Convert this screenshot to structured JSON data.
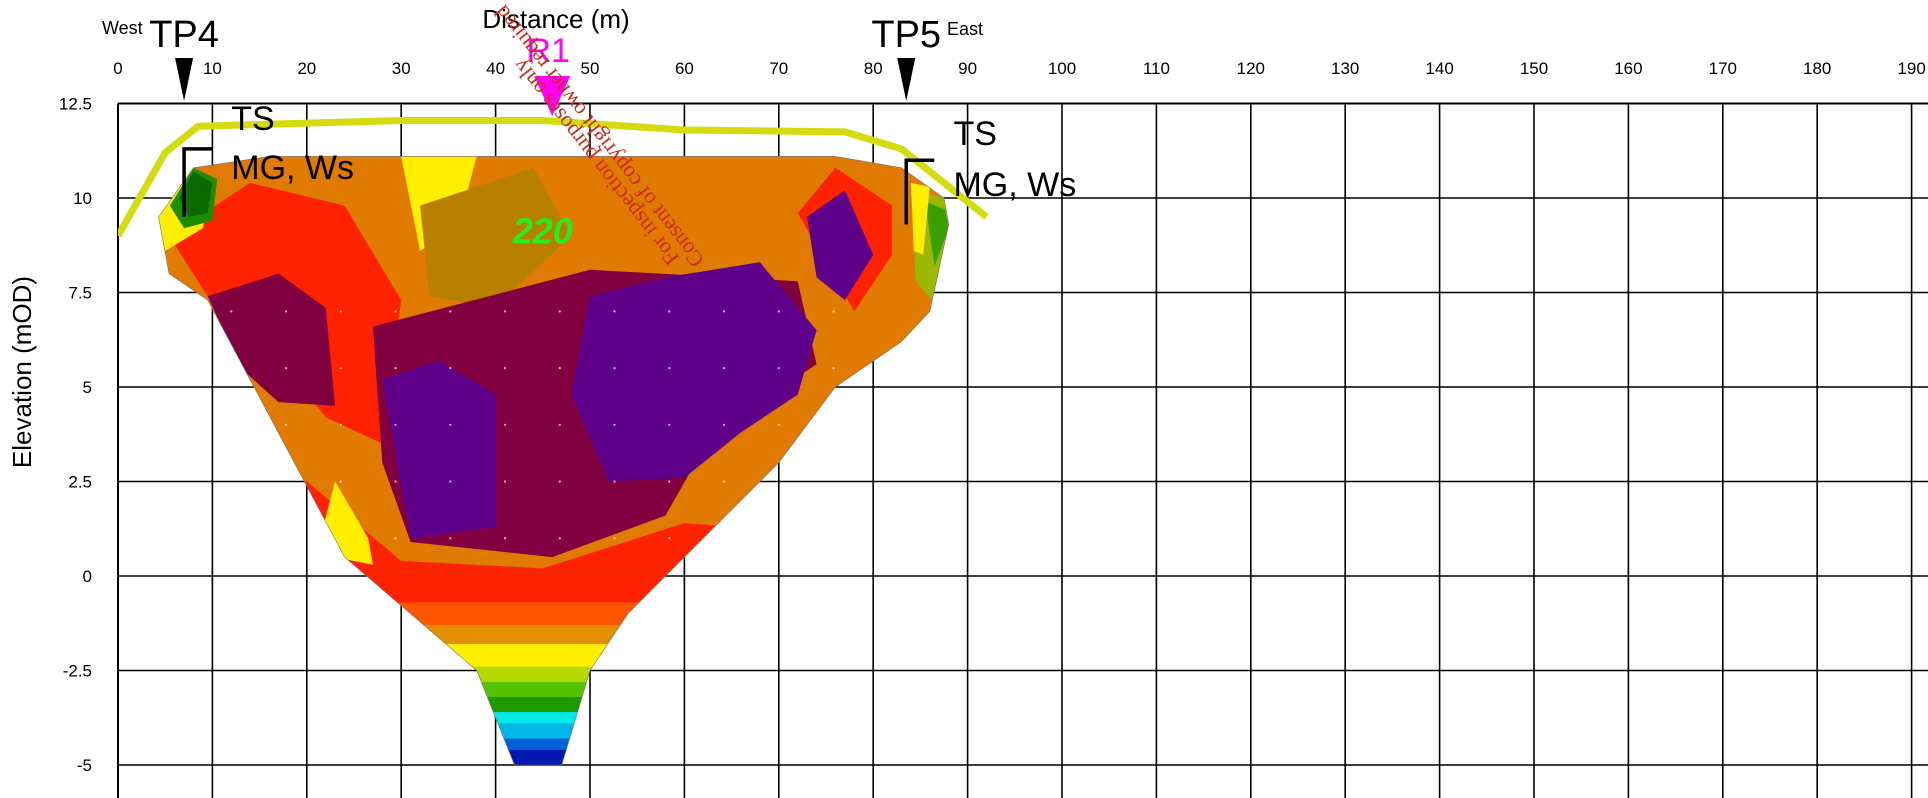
{
  "chart_data": {
    "type": "heatmap",
    "title": "",
    "xlabel": "Distance (m)",
    "ylabel": "Elevation (mOD)",
    "xlim": [
      0,
      190
    ],
    "ylim": [
      -5,
      12.5
    ],
    "x_ticks": [
      "0",
      "10",
      "20",
      "30",
      "40",
      "50",
      "60",
      "70",
      "80",
      "90",
      "100",
      "110",
      "120",
      "130",
      "140",
      "150",
      "160",
      "170",
      "180",
      "190"
    ],
    "y_ticks": [
      "12.5",
      "10",
      "7.5",
      "5",
      "2.5",
      "0",
      "-2.5",
      "-5"
    ],
    "grid": true,
    "directions": {
      "west": "West",
      "east": "East"
    },
    "trial_pits": [
      {
        "name": "TP4",
        "x": 7,
        "top": 11.3,
        "bottom": 9.5
      },
      {
        "name": "TP5",
        "x": 83.5,
        "top": 11.0,
        "bottom": 9.3
      }
    ],
    "geology_labels": [
      {
        "line1": "TS",
        "line2": "MG, Ws",
        "x": 12,
        "y1": 11.8,
        "y2": 10.5
      },
      {
        "line1": "TS",
        "line2": "MG, Ws",
        "x": 88.5,
        "y1": 11.4,
        "y2": 10.05
      }
    ],
    "markers": [
      {
        "name": "R1",
        "x": 46
      }
    ],
    "annotations": [
      {
        "text": "220",
        "x": 45,
        "y": 8.8
      }
    ],
    "ground_surface": {
      "x": [
        0,
        5,
        8.5,
        30,
        45,
        60,
        77,
        83,
        92
      ],
      "y": [
        9.0,
        11.2,
        11.9,
        12.05,
        12.05,
        11.8,
        11.75,
        11.3,
        9.5
      ]
    },
    "section_outline": {
      "x": [
        4.3,
        8,
        16,
        32,
        48,
        60,
        76,
        83,
        87.5,
        88,
        86,
        83,
        76,
        70,
        60,
        54,
        50,
        47,
        42,
        38,
        24,
        9.5,
        5.4,
        4.3
      ],
      "y": [
        9.5,
        10.8,
        11.1,
        11.1,
        11.1,
        11.1,
        11.1,
        10.8,
        10.0,
        9.3,
        7.0,
        6.2,
        5.0,
        3.0,
        0.5,
        -1.0,
        -2.5,
        -5.0,
        -5.0,
        -2.5,
        0.5,
        7.3,
        8.0,
        9.5
      ]
    },
    "zones": [
      {
        "label": "top",
        "color": "#e07a00",
        "path": [
          [
            12,
            11.1
          ],
          [
            80,
            11.1
          ],
          [
            80,
            10.4
          ],
          [
            62,
            9.2
          ],
          [
            40,
            8.8
          ],
          [
            14,
            9.2
          ]
        ]
      },
      {
        "label": "west-warm",
        "color": "#ff2200",
        "path": [
          [
            5.4,
            9.0
          ],
          [
            14,
            10.4
          ],
          [
            24,
            9.8
          ],
          [
            30,
            7.3
          ],
          [
            28,
            3.5
          ],
          [
            22,
            4.2
          ],
          [
            17,
            5.8
          ],
          [
            9.5,
            7.4
          ]
        ]
      },
      {
        "label": "left-yellow",
        "color": "#ffee00",
        "path": [
          [
            30,
            11.1
          ],
          [
            38,
            11.1
          ],
          [
            36,
            9.2
          ],
          [
            32,
            8.6
          ]
        ]
      },
      {
        "label": "center-gold",
        "color": "#b98000",
        "path": [
          [
            32,
            9.8
          ],
          [
            44,
            10.8
          ],
          [
            48,
            9.0
          ],
          [
            40,
            7.1
          ],
          [
            33,
            7.4
          ]
        ]
      },
      {
        "label": "left-pocket",
        "color": "#5e008a",
        "path": [
          [
            11,
            7.3
          ],
          [
            17,
            7.6
          ],
          [
            16,
            6.2
          ],
          [
            11.5,
            6.1
          ]
        ]
      },
      {
        "label": "left-deep",
        "color": "#800040",
        "path": [
          [
            9.5,
            7.4
          ],
          [
            17,
            8.0
          ],
          [
            22,
            7.1
          ],
          [
            23,
            4.5
          ],
          [
            17,
            4.6
          ],
          [
            13,
            5.5
          ]
        ]
      },
      {
        "label": "mid-deep",
        "color": "#800040",
        "path": [
          [
            27,
            6.6
          ],
          [
            50,
            8.1
          ],
          [
            72,
            7.8
          ],
          [
            74,
            5.6
          ],
          [
            63,
            3.8
          ],
          [
            58,
            1.6
          ],
          [
            46,
            0.5
          ],
          [
            31,
            0.9
          ],
          [
            28,
            3.0
          ]
        ]
      },
      {
        "label": "mid-purple-1",
        "color": "#5e008a",
        "path": [
          [
            28,
            5.2
          ],
          [
            34,
            5.7
          ],
          [
            40,
            4.8
          ],
          [
            40,
            1.3
          ],
          [
            31,
            1.0
          ]
        ]
      },
      {
        "label": "mid-purple-2",
        "color": "#5e008a",
        "path": [
          [
            50,
            7.4
          ],
          [
            58,
            7.9
          ],
          [
            68,
            8.3
          ],
          [
            74,
            6.5
          ],
          [
            72,
            4.8
          ],
          [
            66,
            3.8
          ],
          [
            60,
            2.6
          ],
          [
            52,
            2.5
          ],
          [
            48,
            4.8
          ]
        ]
      },
      {
        "label": "east-warm",
        "color": "#ff2200",
        "path": [
          [
            72,
            9.6
          ],
          [
            76,
            10.8
          ],
          [
            82,
            9.8
          ],
          [
            82,
            8.5
          ],
          [
            78,
            7.0
          ]
        ]
      },
      {
        "label": "east-purple",
        "color": "#5e008a",
        "path": [
          [
            73,
            9.5
          ],
          [
            77,
            10.2
          ],
          [
            80,
            8.5
          ],
          [
            77,
            7.3
          ],
          [
            74,
            7.9
          ]
        ]
      },
      {
        "label": "west-cap-yellow",
        "color": "#ffee00",
        "path": [
          [
            4.3,
            9.5
          ],
          [
            8,
            10.8
          ],
          [
            10,
            10.5
          ],
          [
            9,
            9.2
          ],
          [
            5,
            8.6
          ]
        ]
      },
      {
        "label": "west-cap-green",
        "color": "#1e8c00",
        "path": [
          [
            5.5,
            9.8
          ],
          [
            8,
            10.8
          ],
          [
            10.5,
            10.5
          ],
          [
            10,
            9.4
          ],
          [
            7,
            9.2
          ]
        ]
      },
      {
        "label": "west-cap-darkgreen",
        "color": "#0a6a00",
        "path": [
          [
            6.5,
            10.0
          ],
          [
            8,
            10.7
          ],
          [
            10,
            10.4
          ],
          [
            9.5,
            9.6
          ],
          [
            7.5,
            9.5
          ]
        ]
      },
      {
        "label": "east-cap-olive",
        "color": "#9ab800",
        "path": [
          [
            84,
            10.2
          ],
          [
            87.5,
            10.0
          ],
          [
            88,
            9.3
          ],
          [
            86.2,
            7.3
          ],
          [
            84.5,
            7.8
          ]
        ]
      },
      {
        "label": "east-cap-green",
        "color": "#3aa000",
        "path": [
          [
            85.5,
            9.9
          ],
          [
            87.6,
            9.7
          ],
          [
            88,
            9.2
          ],
          [
            86.5,
            8.2
          ]
        ]
      },
      {
        "label": "east-cap-yellow",
        "color": "#ffee00",
        "path": [
          [
            84,
            10.4
          ],
          [
            86,
            10.3
          ],
          [
            85.3,
            8.5
          ],
          [
            84.3,
            8.6
          ]
        ]
      },
      {
        "label": "west-low-yellow",
        "color": "#ffee00",
        "path": [
          [
            23,
            2.5
          ],
          [
            26.5,
            1.0
          ],
          [
            27,
            0.3
          ],
          [
            21,
            0.6
          ]
        ]
      }
    ],
    "bottom_bands": [
      {
        "level": 0.1,
        "color": "#ff2200"
      },
      {
        "level": -0.7,
        "color": "#ff5500"
      },
      {
        "level": -1.3,
        "color": "#e09000"
      },
      {
        "level": -1.8,
        "color": "#ffee00"
      },
      {
        "level": -2.4,
        "color": "#b5d800"
      },
      {
        "level": -2.8,
        "color": "#55c400"
      },
      {
        "level": -3.2,
        "color": "#1e9a00"
      },
      {
        "level": -3.6,
        "color": "#00e8e8"
      },
      {
        "level": -3.9,
        "color": "#00b8e8"
      },
      {
        "level": -4.3,
        "color": "#0060d8"
      },
      {
        "level": -4.6,
        "color": "#0018b0"
      }
    ],
    "watermark": {
      "line1": "Consent of copyright owner required",
      "line2": "For inspection purposes only"
    }
  }
}
